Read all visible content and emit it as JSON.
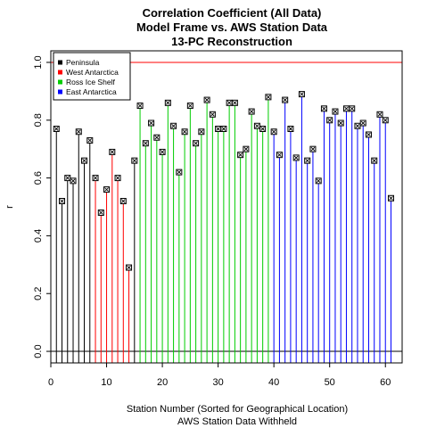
{
  "chart_data": {
    "type": "scatter",
    "plot_style": "vertical lines from zero with open square markers",
    "title": [
      "Correlation Coefficient (All Data)",
      "Model Frame vs. AWS Station Data",
      "13-PC Reconstruction"
    ],
    "xlabel": "Station Number (Sorted for Geographical Location)",
    "xlabel2": "AWS Station Data Withheld",
    "ylabel": "r",
    "xlim": [
      0,
      63
    ],
    "ylim": [
      -0.04,
      1.04
    ],
    "xticks": [
      0,
      10,
      20,
      30,
      40,
      50,
      60
    ],
    "yticks": [
      0.0,
      0.2,
      0.4,
      0.6,
      0.8,
      1.0
    ],
    "ytick_labels": [
      "0.0",
      "0.2",
      "0.4",
      "0.6",
      "0.8",
      "1.0"
    ],
    "legend_position": "top-left",
    "legend": [
      {
        "name": "Peninsula",
        "color": "#000000"
      },
      {
        "name": "West Antarctica",
        "color": "#ff0000"
      },
      {
        "name": "Ross Ice Shelf",
        "color": "#00cd00"
      },
      {
        "name": "East Antarctica",
        "color": "#0000ff"
      }
    ],
    "reference_line": {
      "y": 1.0,
      "color": "#ff0000"
    },
    "zero_line": {
      "y": 0.0,
      "color": "#000000"
    },
    "groups": [
      {
        "name": "Peninsula",
        "x": [
          1,
          2,
          3,
          4,
          5,
          6,
          7
        ],
        "y": [
          0.77,
          0.52,
          0.6,
          0.59,
          0.76,
          0.66,
          0.73
        ]
      },
      {
        "name": "West Antarctica",
        "x": [
          8,
          9,
          10,
          11,
          12,
          13,
          14
        ],
        "y": [
          0.6,
          0.48,
          0.56,
          0.69,
          0.6,
          0.52,
          0.29
        ]
      },
      {
        "name": "Peninsula",
        "x": [
          15
        ],
        "y": [
          0.66
        ]
      },
      {
        "name": "Ross Ice Shelf",
        "x": [
          16,
          17,
          18,
          19,
          20,
          21,
          22,
          23,
          24,
          25,
          26,
          27,
          28,
          29,
          30,
          31,
          32,
          33,
          34,
          35,
          36,
          37,
          38,
          39
        ],
        "y": [
          0.85,
          0.72,
          0.79,
          0.74,
          0.69,
          0.86,
          0.78,
          0.62,
          0.76,
          0.85,
          0.72,
          0.76,
          0.87,
          0.82,
          0.77,
          0.77,
          0.86,
          0.86,
          0.68,
          0.7,
          0.83,
          0.78,
          0.77,
          0.88
        ]
      },
      {
        "name": "East Antarctica",
        "x": [
          40,
          41,
          42,
          43,
          44,
          45,
          46,
          47,
          48,
          49,
          50,
          51,
          52,
          53,
          54,
          55,
          56,
          57,
          58,
          59,
          60,
          61
        ],
        "y": [
          0.76,
          0.68,
          0.87,
          0.77,
          0.67,
          0.89,
          0.66,
          0.7,
          0.59,
          0.84,
          0.8,
          0.83,
          0.79,
          0.84,
          0.84,
          0.78,
          0.79,
          0.75,
          0.66,
          0.82,
          0.8,
          0.53
        ]
      }
    ]
  }
}
